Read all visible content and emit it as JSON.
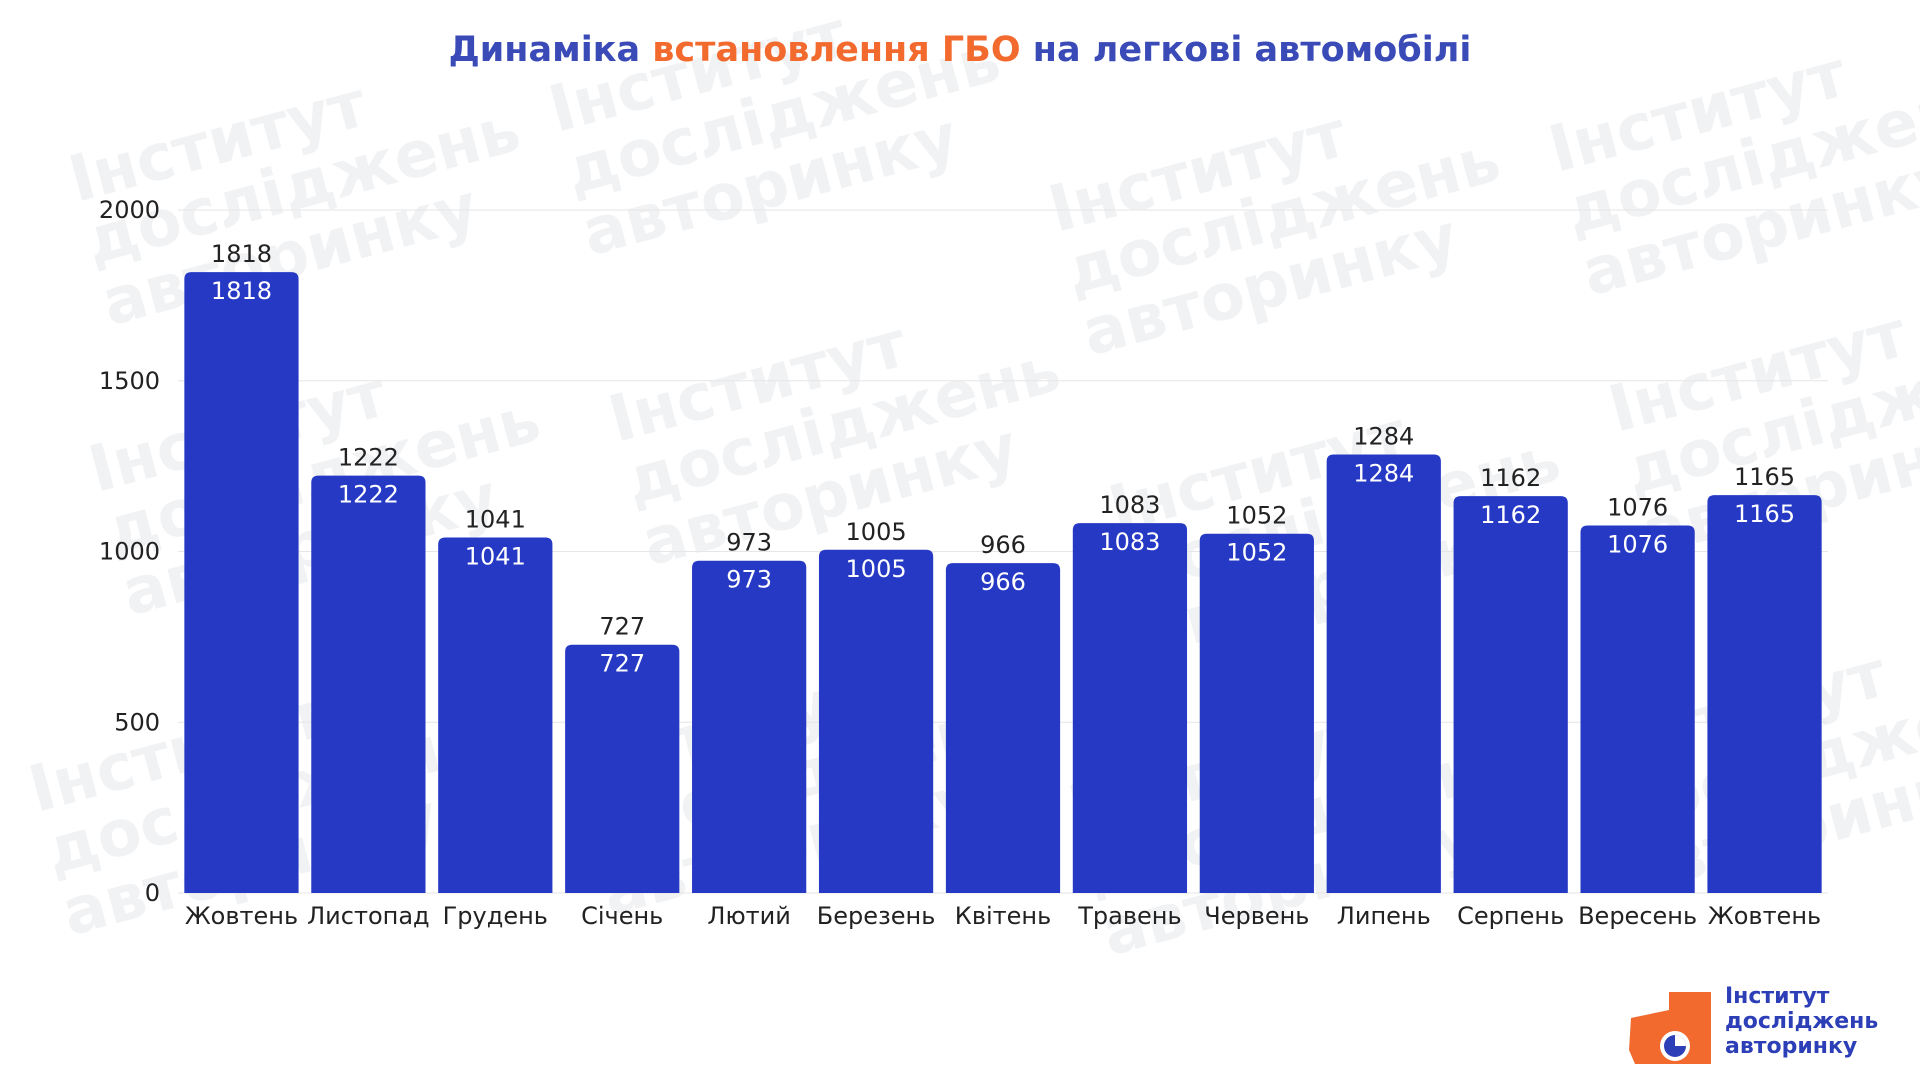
{
  "title": {
    "part1": "Динаміка",
    "part2": "встановлення ГБО",
    "part3": "на легкові автомобілі"
  },
  "colors": {
    "bar": "#2539c5",
    "title_blue": "#3a4bb8",
    "title_orange": "#f26a2e",
    "logo_orange": "#f26a2e",
    "logo_blue": "#2d3fb7"
  },
  "watermark": {
    "line1": "Інститут",
    "line2": "досліджень",
    "line3": "авторинку"
  },
  "logo": {
    "line1": "Інститут",
    "line2": "досліджень",
    "line3": "авторинку"
  },
  "chart_data": {
    "type": "bar",
    "title": "Динаміка встановлення ГБО на легкові автомобілі",
    "xlabel": "",
    "ylabel": "",
    "ylim": [
      0,
      2000
    ],
    "yticks": [
      0,
      500,
      1000,
      1500,
      2000
    ],
    "grid": true,
    "legend": "none",
    "categories": [
      "Жовтень",
      "Листопад",
      "Грудень",
      "Січень",
      "Лютий",
      "Березень",
      "Квітень",
      "Травень",
      "Червень",
      "Липень",
      "Серпень",
      "Вересень",
      "Жовтень"
    ],
    "values": [
      1818,
      1222,
      1041,
      727,
      973,
      1005,
      966,
      1083,
      1052,
      1284,
      1162,
      1076,
      1165
    ]
  }
}
